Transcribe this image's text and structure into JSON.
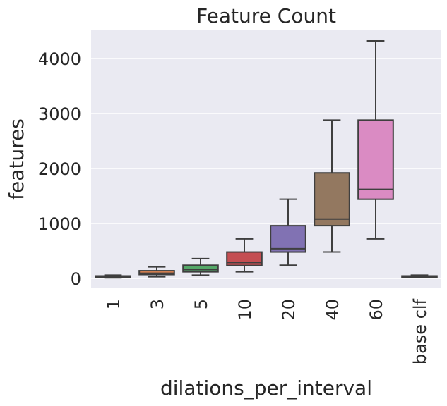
{
  "chart_data": {
    "type": "box",
    "title": "Feature Count",
    "xlabel": "dilations_per_interval",
    "ylabel": "features",
    "ylim": [
      -200,
      4500
    ],
    "yticks": [
      0,
      1000,
      2000,
      3000,
      4000
    ],
    "grid": true,
    "categories": [
      "1",
      "3",
      "5",
      "10",
      "20",
      "40",
      "60",
      "base clf"
    ],
    "boxes": [
      {
        "category": "1",
        "min": 10,
        "q1": 20,
        "median": 30,
        "q3": 45,
        "max": 60,
        "color": "#4c72b0"
      },
      {
        "category": "3",
        "min": 30,
        "q1": 70,
        "median": 95,
        "q3": 140,
        "max": 210,
        "color": "#dd8452"
      },
      {
        "category": "5",
        "min": 60,
        "q1": 120,
        "median": 160,
        "q3": 240,
        "max": 360,
        "color": "#55a868"
      },
      {
        "category": "10",
        "min": 120,
        "q1": 235,
        "median": 290,
        "q3": 480,
        "max": 720,
        "color": "#c44e52"
      },
      {
        "category": "20",
        "min": 240,
        "q1": 480,
        "median": 540,
        "q3": 960,
        "max": 1440,
        "color": "#8172b3"
      },
      {
        "category": "40",
        "min": 480,
        "q1": 960,
        "median": 1080,
        "q3": 1920,
        "max": 2880,
        "color": "#937860"
      },
      {
        "category": "60",
        "min": 720,
        "q1": 1440,
        "median": 1620,
        "q3": 2880,
        "max": 4320,
        "color": "#da8bc3"
      },
      {
        "category": "base clf",
        "min": 15,
        "q1": 25,
        "median": 35,
        "q3": 45,
        "max": 60,
        "color": "#8c8c8c"
      }
    ]
  }
}
